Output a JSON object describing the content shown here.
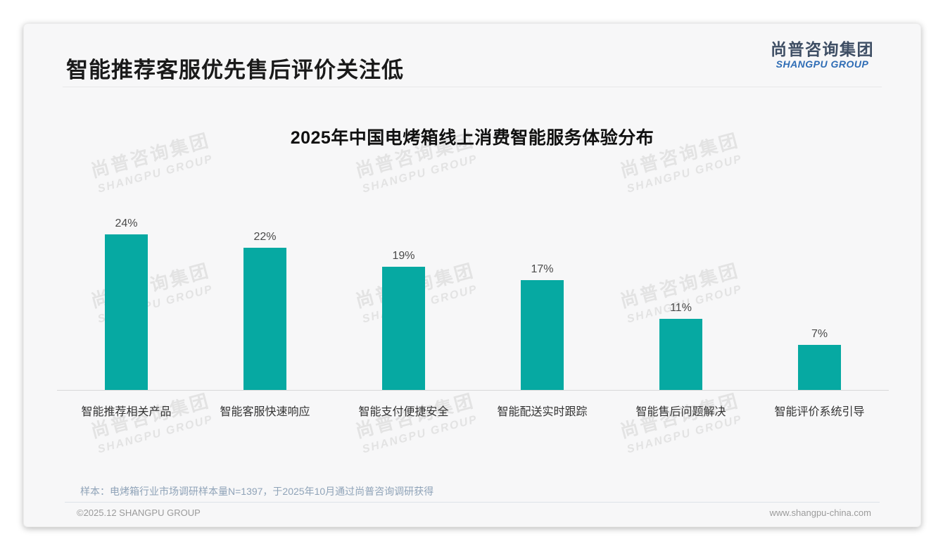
{
  "page_title": "智能推荐客服优先售后评价关注低",
  "logo": {
    "zh": "尚普咨询集团",
    "en": "SHANGPU GROUP"
  },
  "watermark": {
    "zh": "尚普咨询集团",
    "en": "SHANGPU GROUP"
  },
  "chart_data": {
    "type": "bar",
    "title": "2025年中国电烤箱线上消费智能服务体验分布",
    "categories": [
      "智能推荐相关产品",
      "智能客服快速响应",
      "智能支付便捷安全",
      "智能配送实时跟踪",
      "智能售后问题解决",
      "智能评价系统引导"
    ],
    "values": [
      24,
      22,
      19,
      17,
      11,
      7
    ],
    "value_labels": [
      "24%",
      "22%",
      "19%",
      "17%",
      "11%",
      "7%"
    ],
    "unit": "%",
    "bar_color": "#06a9a2",
    "ylim": [
      0,
      26
    ],
    "grid": false,
    "legend": false,
    "xlabel": "",
    "ylabel": ""
  },
  "footnote": "样本：电烤箱行业市场调研样本量N=1397，于2025年10月通过尚普咨询调研获得",
  "footer": {
    "copyright": "©2025.12 SHANGPU GROUP",
    "website": "www.shangpu-china.com"
  }
}
